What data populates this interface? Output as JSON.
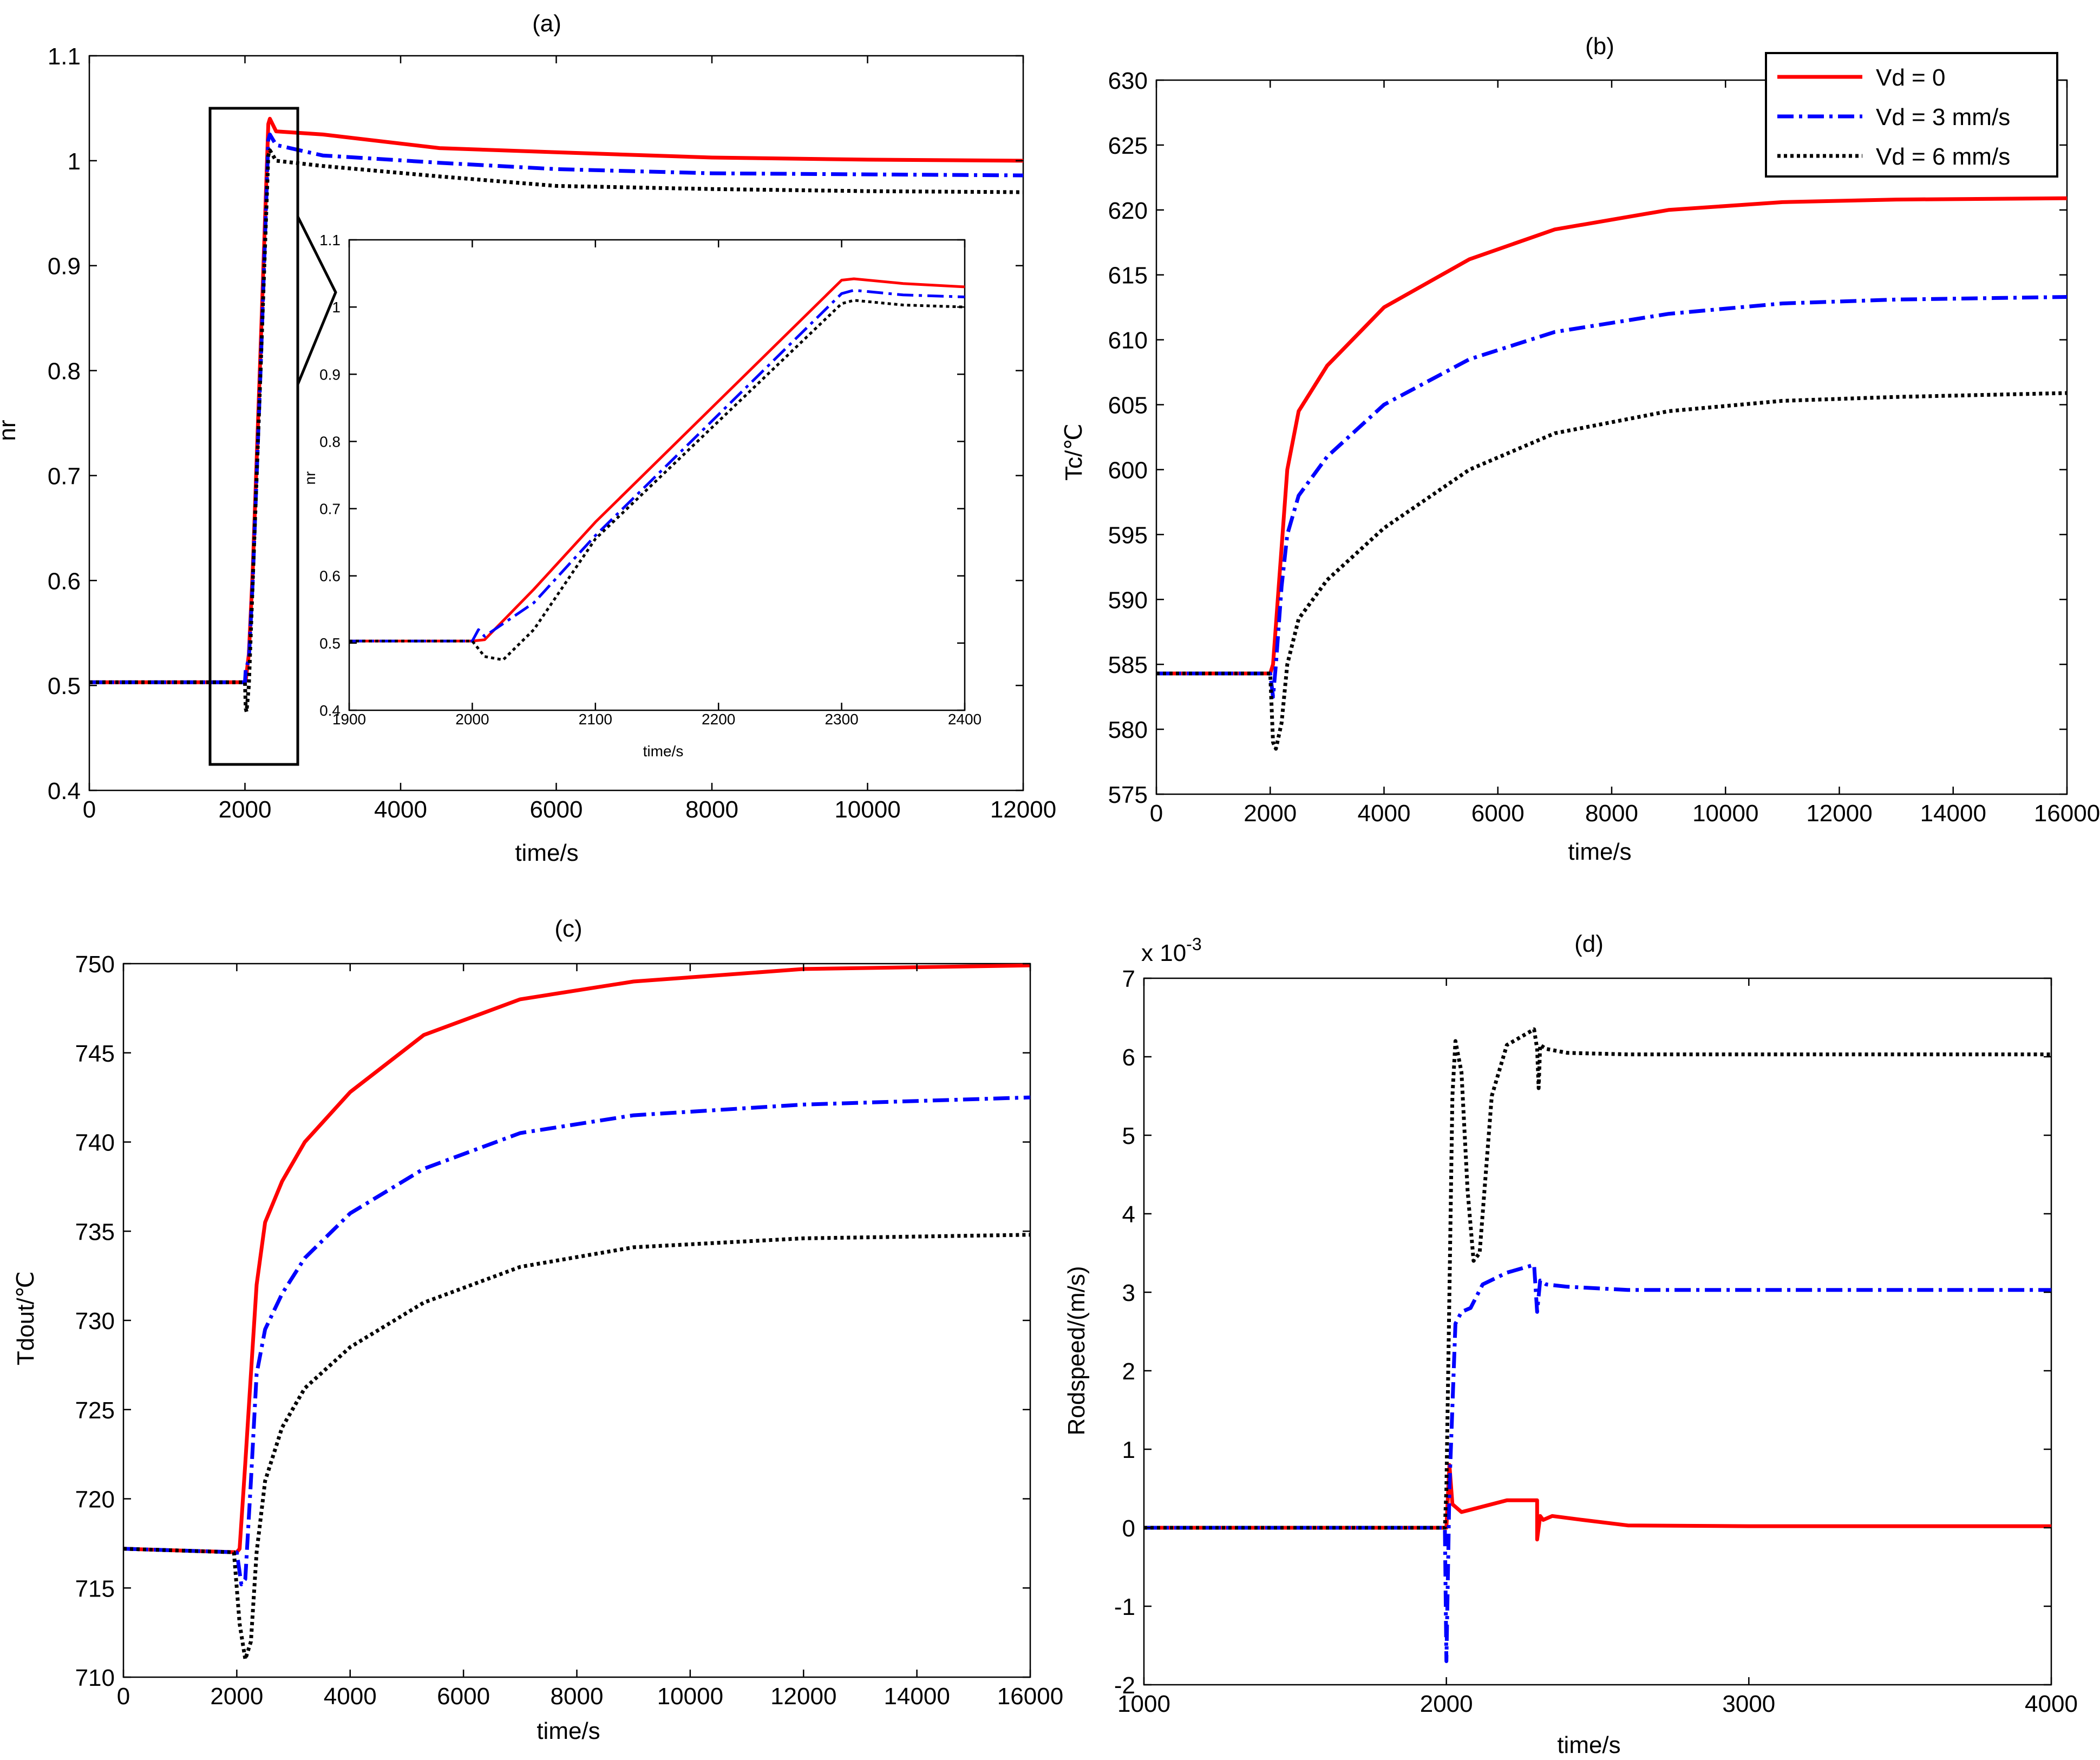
{
  "colors": {
    "red": "#ff0000",
    "blue": "#0000ff",
    "black": "#000000"
  },
  "legend": {
    "placement": "top-right of panel (b)",
    "entries": [
      {
        "label": "Vd = 0",
        "color": "#ff0000",
        "style": "solid"
      },
      {
        "label": "Vd = 3 mm/s",
        "color": "#0000ff",
        "style": "dashdot"
      },
      {
        "label": "Vd = 6 mm/s",
        "color": "#000000",
        "style": "dotted"
      }
    ]
  },
  "chart_data": [
    {
      "id": "a",
      "type": "line",
      "title": "(a)",
      "xlabel": "time/s",
      "ylabel": "nr",
      "xlim": [
        0,
        12000
      ],
      "ylim": [
        0.4,
        1.1
      ],
      "xticks": [
        "0",
        "2000",
        "4000",
        "6000",
        "8000",
        "10000",
        "12000"
      ],
      "yticks": [
        "0.4",
        "0.5",
        "0.6",
        "0.7",
        "0.8",
        "0.9",
        "1",
        "1.1"
      ],
      "series": [
        {
          "name": "Vd = 0",
          "color": "#ff0000",
          "style": "solid",
          "x": [
            0,
            2000,
            2010,
            2050,
            2100,
            2200,
            2300,
            2320,
            2400,
            3000,
            4500,
            6000,
            8000,
            10000,
            12000
          ],
          "y": [
            0.503,
            0.503,
            0.505,
            0.53,
            0.61,
            0.82,
            1.035,
            1.04,
            1.028,
            1.025,
            1.012,
            1.008,
            1.003,
            1.001,
            1.0
          ]
        },
        {
          "name": "Vd = 3 mm/s",
          "color": "#0000ff",
          "style": "dashdot",
          "x": [
            0,
            2000,
            2010,
            2050,
            2100,
            2200,
            2300,
            2320,
            2400,
            3000,
            4500,
            6000,
            8000,
            10000,
            12000
          ],
          "y": [
            0.503,
            0.503,
            0.515,
            0.525,
            0.6,
            0.8,
            1.02,
            1.025,
            1.015,
            1.005,
            0.998,
            0.992,
            0.988,
            0.987,
            0.986
          ]
        },
        {
          "name": "Vd = 6 mm/s",
          "color": "#000000",
          "style": "dotted",
          "x": [
            0,
            2000,
            2010,
            2020,
            2050,
            2100,
            2200,
            2300,
            2320,
            2400,
            3000,
            4500,
            6000,
            8000,
            10000,
            12000
          ],
          "y": [
            0.503,
            0.503,
            0.478,
            0.475,
            0.5,
            0.6,
            0.8,
            1.005,
            1.01,
            1.0,
            0.995,
            0.985,
            0.976,
            0.973,
            0.971,
            0.97
          ]
        }
      ],
      "inset": {
        "xlabel": "time/s",
        "ylabel": "nr",
        "xlim": [
          1900,
          2400
        ],
        "ylim": [
          0.4,
          1.1
        ],
        "xticks": [
          "1900",
          "2000",
          "2100",
          "2200",
          "2300",
          "2400"
        ],
        "yticks": [
          "0.4",
          "0.5",
          "0.6",
          "0.7",
          "0.8",
          "0.9",
          "1",
          "1.1"
        ],
        "series": [
          {
            "name": "Vd = 0",
            "color": "#ff0000",
            "style": "solid",
            "x": [
              1900,
              2000,
              2010,
              2050,
              2100,
              2200,
              2300,
              2310,
              2350,
              2400
            ],
            "y": [
              0.503,
              0.503,
              0.505,
              0.58,
              0.68,
              0.86,
              1.04,
              1.042,
              1.035,
              1.03
            ]
          },
          {
            "name": "Vd = 3 mm/s",
            "color": "#0000ff",
            "style": "dashdot",
            "x": [
              1900,
              2000,
              2005,
              2010,
              2050,
              2100,
              2200,
              2300,
              2310,
              2350,
              2400
            ],
            "y": [
              0.503,
              0.503,
              0.52,
              0.51,
              0.56,
              0.66,
              0.84,
              1.02,
              1.025,
              1.018,
              1.015
            ]
          },
          {
            "name": "Vd = 6 mm/s",
            "color": "#000000",
            "style": "dotted",
            "x": [
              1900,
              2000,
              2010,
              2025,
              2050,
              2100,
              2200,
              2300,
              2310,
              2350,
              2400
            ],
            "y": [
              0.503,
              0.503,
              0.48,
              0.475,
              0.52,
              0.655,
              0.83,
              1.005,
              1.01,
              1.003,
              1.0
            ]
          }
        ]
      }
    },
    {
      "id": "b",
      "type": "line",
      "title": "(b)",
      "xlabel": "time/s",
      "ylabel": "Tc/℃",
      "xlim": [
        0,
        16000
      ],
      "ylim": [
        575,
        630
      ],
      "xticks": [
        "0",
        "2000",
        "4000",
        "6000",
        "8000",
        "10000",
        "12000",
        "14000",
        "16000"
      ],
      "yticks": [
        "575",
        "580",
        "585",
        "590",
        "595",
        "600",
        "605",
        "610",
        "615",
        "620",
        "625",
        "630"
      ],
      "series": [
        {
          "name": "Vd = 0",
          "color": "#ff0000",
          "style": "solid",
          "x": [
            0,
            2000,
            2050,
            2150,
            2300,
            2500,
            3000,
            4000,
            5500,
            7000,
            9000,
            11000,
            13000,
            16000
          ],
          "y": [
            584.3,
            584.3,
            585,
            591,
            600,
            604.5,
            608,
            612.5,
            616.2,
            618.5,
            620,
            620.6,
            620.8,
            620.9
          ]
        },
        {
          "name": "Vd = 3 mm/s",
          "color": "#0000ff",
          "style": "dashdot",
          "x": [
            0,
            2000,
            2050,
            2100,
            2200,
            2300,
            2500,
            3000,
            4000,
            5500,
            7000,
            9000,
            11000,
            13000,
            16000
          ],
          "y": [
            584.3,
            584.3,
            582.5,
            585,
            591,
            595,
            598,
            601,
            605,
            608.5,
            610.6,
            612,
            612.8,
            613.1,
            613.3
          ]
        },
        {
          "name": "Vd = 6 mm/s",
          "color": "#000000",
          "style": "dotted",
          "x": [
            0,
            2000,
            2050,
            2100,
            2200,
            2300,
            2500,
            3000,
            4000,
            5500,
            7000,
            9000,
            11000,
            13000,
            16000
          ],
          "y": [
            584.3,
            584.3,
            579,
            578.5,
            580.5,
            585,
            588.5,
            591.5,
            595.5,
            600,
            602.8,
            604.5,
            605.3,
            605.6,
            605.9
          ]
        }
      ]
    },
    {
      "id": "c",
      "type": "line",
      "title": "(c)",
      "xlabel": "time/s",
      "ylabel": "Tdout/℃",
      "xlim": [
        0,
        16000
      ],
      "ylim": [
        710,
        750
      ],
      "xticks": [
        "0",
        "2000",
        "4000",
        "6000",
        "8000",
        "10000",
        "12000",
        "14000",
        "16000"
      ],
      "yticks": [
        "710",
        "715",
        "720",
        "725",
        "730",
        "735",
        "740",
        "745",
        "750"
      ],
      "series": [
        {
          "name": "Vd = 0",
          "color": "#ff0000",
          "style": "solid",
          "x": [
            0,
            2000,
            2050,
            2150,
            2250,
            2350,
            2500,
            2800,
            3200,
            4000,
            5300,
            7000,
            9000,
            12000,
            16000
          ],
          "y": [
            717.2,
            717.0,
            717.2,
            722,
            727,
            732,
            735.5,
            737.8,
            740,
            742.8,
            746,
            748,
            749,
            749.7,
            749.9
          ]
        },
        {
          "name": "Vd = 3 mm/s",
          "color": "#0000ff",
          "style": "dashdot",
          "x": [
            0,
            2000,
            2080,
            2150,
            2250,
            2350,
            2500,
            2800,
            3200,
            4000,
            5300,
            7000,
            9000,
            12000,
            16000
          ],
          "y": [
            717.2,
            717.0,
            715.2,
            715.5,
            721,
            727,
            729.5,
            731.5,
            733.5,
            736,
            738.5,
            740.5,
            741.5,
            742.1,
            742.5
          ]
        },
        {
          "name": "Vd = 6 mm/s",
          "color": "#000000",
          "style": "dotted",
          "x": [
            0,
            1950,
            2050,
            2150,
            2250,
            2350,
            2500,
            2800,
            3200,
            4000,
            5300,
            7000,
            9000,
            12000,
            16000
          ],
          "y": [
            717.2,
            717.0,
            713,
            711,
            712,
            717,
            721,
            724,
            726.2,
            728.5,
            731,
            733,
            734.1,
            734.6,
            734.8
          ]
        }
      ]
    },
    {
      "id": "d",
      "type": "line",
      "title": "(d)",
      "xlabel": "time/s",
      "ylabel": "Rodspeed/(m/s)",
      "scale_label": "x 10",
      "scale_exponent": "-3",
      "xlim": [
        1000,
        4000
      ],
      "ylim": [
        -2,
        7
      ],
      "xticks": [
        "1000",
        "2000",
        "3000",
        "4000"
      ],
      "yticks": [
        "-2",
        "-1",
        "0",
        "1",
        "2",
        "3",
        "4",
        "5",
        "6",
        "7"
      ],
      "series": [
        {
          "name": "Vd = 0",
          "color": "#ff0000",
          "style": "solid",
          "x": [
            1000,
            2000,
            2010,
            2020,
            2050,
            2100,
            2200,
            2300,
            2300,
            2310,
            2320,
            2350,
            2450,
            2600,
            3000,
            4000
          ],
          "y": [
            0,
            0,
            0.8,
            0.3,
            0.2,
            0.25,
            0.35,
            0.35,
            -0.15,
            0.15,
            0.1,
            0.15,
            0.1,
            0.03,
            0.02,
            0.02
          ]
        },
        {
          "name": "Vd = 3 mm/s",
          "color": "#0000ff",
          "style": "dashdot",
          "x": [
            1000,
            1995,
            2000,
            2010,
            2030,
            2050,
            2080,
            2120,
            2200,
            2290,
            2300,
            2310,
            2330,
            2400,
            2600,
            3000,
            4000
          ],
          "y": [
            0,
            0,
            -1.7,
            0.5,
            2.6,
            2.75,
            2.8,
            3.1,
            3.25,
            3.35,
            2.75,
            3.15,
            3.1,
            3.07,
            3.03,
            3.03,
            3.03
          ]
        },
        {
          "name": "Vd = 6 mm/s",
          "color": "#000000",
          "style": "dotted",
          "x": [
            1000,
            1995,
            2000,
            2010,
            2020,
            2030,
            2050,
            2070,
            2090,
            2110,
            2150,
            2200,
            2290,
            2300,
            2305,
            2310,
            2330,
            2400,
            2600,
            3000,
            4000
          ],
          "y": [
            0,
            0,
            0.5,
            3.0,
            5.5,
            6.2,
            5.8,
            4.3,
            3.4,
            3.5,
            5.5,
            6.15,
            6.35,
            6.1,
            5.6,
            6.15,
            6.1,
            6.05,
            6.03,
            6.03,
            6.03
          ]
        }
      ]
    }
  ]
}
